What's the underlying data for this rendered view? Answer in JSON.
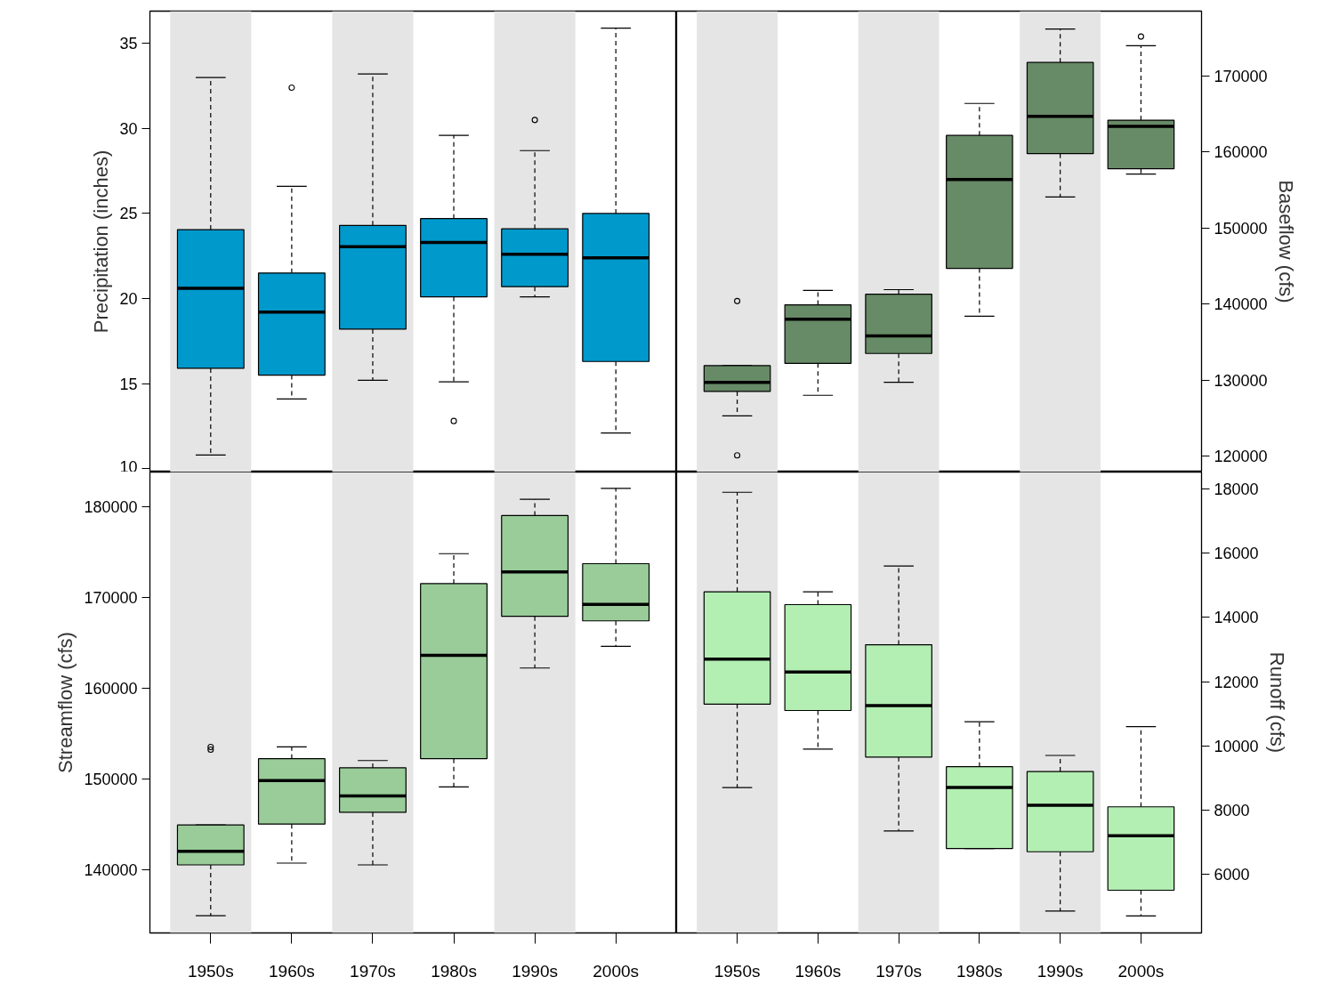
{
  "chart_data": [
    {
      "type": "box",
      "ylabel": "Precipitation (inches)",
      "categories": [
        "1950s",
        "1960s",
        "1970s",
        "1980s",
        "1990s",
        "2000s"
      ],
      "ylim": [
        9.8,
        36.9
      ],
      "yticks": [
        10,
        15,
        20,
        25,
        30,
        35
      ],
      "tick_labels": "y",
      "line_style": "dashed",
      "bands": [
        {
          "axis": "x",
          "from": "1950s",
          "to": "1950s",
          "color": "#e5e5e5"
        },
        {
          "axis": "x",
          "from": "1970s",
          "to": "1970s",
          "color": "#e5e5e5"
        },
        {
          "axis": "x",
          "from": "1990s",
          "to": "1990s",
          "color": "#e5e5e5"
        }
      ],
      "series": [
        {
          "color": "#0099cc",
          "boxes": [
            {
              "low": 10.8,
              "q1": 15.9,
              "median": 20.6,
              "q3": 24.05,
              "high": 33.0
            },
            {
              "low": 14.1,
              "q1": 15.5,
              "median": 19.2,
              "q3": 21.5,
              "high": 26.6,
              "outliers": [
                32.4
              ]
            },
            {
              "low": 15.2,
              "q1": 18.2,
              "median": 23.05,
              "q3": 24.3,
              "high": 33.2
            },
            {
              "low": 15.1,
              "q1": 20.1,
              "median": 23.3,
              "q3": 24.7,
              "high": 29.6,
              "outliers": [
                12.8
              ]
            },
            {
              "low": 20.1,
              "q1": 20.7,
              "median": 22.6,
              "q3": 24.1,
              "high": 28.7,
              "outliers": [
                30.5
              ]
            },
            {
              "low": 12.1,
              "q1": 16.3,
              "median": 22.4,
              "q3": 25.0,
              "high": 35.9
            }
          ]
        }
      ]
    },
    {
      "type": "box",
      "y2label": "Baseflow (cfs)",
      "categories": [
        "1950s",
        "1960s",
        "1970s",
        "1980s",
        "1990s",
        "2000s"
      ],
      "y2lim": [
        117900,
        178550
      ],
      "y2ticks": [
        120000,
        130000,
        140000,
        150000,
        160000,
        170000
      ],
      "tick_labels": "y",
      "line_style": "dashed",
      "bands": [
        {
          "axis": "x",
          "from": "1950s",
          "to": "1950s",
          "color": "#e5e5e5"
        },
        {
          "axis": "x",
          "from": "1970s",
          "to": "1970s",
          "color": "#e5e5e5"
        },
        {
          "axis": "x",
          "from": "1990s",
          "to": "1990s",
          "color": "#e5e5e5"
        }
      ],
      "series": [
        {
          "color": "#678a67",
          "axis": "y2",
          "boxes": [
            {
              "low": 125300,
              "q1": 128500,
              "median": 129700,
              "q3": 131900,
              "high": 131900,
              "outliers": [
                140400,
                120100
              ]
            },
            {
              "low": 128000,
              "q1": 132200,
              "median": 138000,
              "q3": 139900,
              "high": 141800
            },
            {
              "low": 129700,
              "q1": 133500,
              "median": 135800,
              "q3": 141300,
              "high": 141900
            },
            {
              "low": 138400,
              "q1": 144700,
              "median": 156400,
              "q3": 162200,
              "high": 166400
            },
            {
              "low": 154100,
              "q1": 159800,
              "median": 164700,
              "q3": 171800,
              "high": 176200
            },
            {
              "low": 157100,
              "q1": 157800,
              "median": 163400,
              "q3": 164200,
              "high": 174000,
              "outliers": [
                175200
              ]
            }
          ]
        }
      ]
    },
    {
      "type": "box",
      "ylabel": "Streamflow (cfs)",
      "categories": [
        "1950s",
        "1960s",
        "1970s",
        "1980s",
        "1990s",
        "2000s"
      ],
      "ylim": [
        133000,
        183800
      ],
      "yticks": [
        140000,
        150000,
        160000,
        170000,
        180000
      ],
      "line_style": "dashed",
      "bands": [
        {
          "axis": "x",
          "from": "1950s",
          "to": "1950s",
          "color": "#e5e5e5"
        },
        {
          "axis": "x",
          "from": "1970s",
          "to": "1970s",
          "color": "#e5e5e5"
        },
        {
          "axis": "x",
          "from": "1990s",
          "to": "1990s",
          "color": "#e5e5e5"
        }
      ],
      "series": [
        {
          "color": "#99cc99",
          "boxes": [
            {
              "low": 134900,
              "q1": 140500,
              "median": 142000,
              "q3": 144900,
              "high": 144900,
              "outliers": [
                153500,
                153200
              ]
            },
            {
              "low": 140700,
              "q1": 145000,
              "median": 149800,
              "q3": 152200,
              "high": 153500
            },
            {
              "low": 140500,
              "q1": 146300,
              "median": 148100,
              "q3": 151200,
              "high": 152000
            },
            {
              "low": 149100,
              "q1": 152200,
              "median": 163600,
              "q3": 171500,
              "high": 174800
            },
            {
              "low": 162200,
              "q1": 167900,
              "median": 172800,
              "q3": 179000,
              "high": 180800
            },
            {
              "low": 164600,
              "q1": 167400,
              "median": 169200,
              "q3": 173700,
              "high": 182000
            }
          ]
        }
      ]
    },
    {
      "type": "box",
      "y2label": "Runoff (cfs)",
      "categories": [
        "1950s",
        "1960s",
        "1970s",
        "1980s",
        "1990s",
        "2000s"
      ],
      "y2lim": [
        4170,
        18530
      ],
      "y2ticks": [
        6000,
        8000,
        10000,
        12000,
        14000,
        16000,
        18000
      ],
      "line_style": "dashed",
      "bands": [
        {
          "axis": "x",
          "from": "1950s",
          "to": "1950s",
          "color": "#e5e5e5"
        },
        {
          "axis": "x",
          "from": "1970s",
          "to": "1970s",
          "color": "#e5e5e5"
        },
        {
          "axis": "x",
          "from": "1990s",
          "to": "1990s",
          "color": "#e5e5e5"
        }
      ],
      "series": [
        {
          "color": "#b3eeb3",
          "axis": "y2",
          "boxes": [
            {
              "low": 8700,
              "q1": 11300,
              "median": 12700,
              "q3": 14800,
              "high": 17900
            },
            {
              "low": 9900,
              "q1": 11100,
              "median": 12300,
              "q3": 14400,
              "high": 14800
            },
            {
              "low": 7350,
              "q1": 9650,
              "median": 11250,
              "q3": 13150,
              "high": 15600
            },
            {
              "low": 6800,
              "q1": 6800,
              "median": 8700,
              "q3": 9350,
              "high": 10750
            },
            {
              "low": 4850,
              "q1": 6700,
              "median": 8150,
              "q3": 9200,
              "high": 9700
            },
            {
              "low": 4700,
              "q1": 5500,
              "median": 7200,
              "q3": 8100,
              "high": 10600
            }
          ]
        }
      ]
    }
  ]
}
